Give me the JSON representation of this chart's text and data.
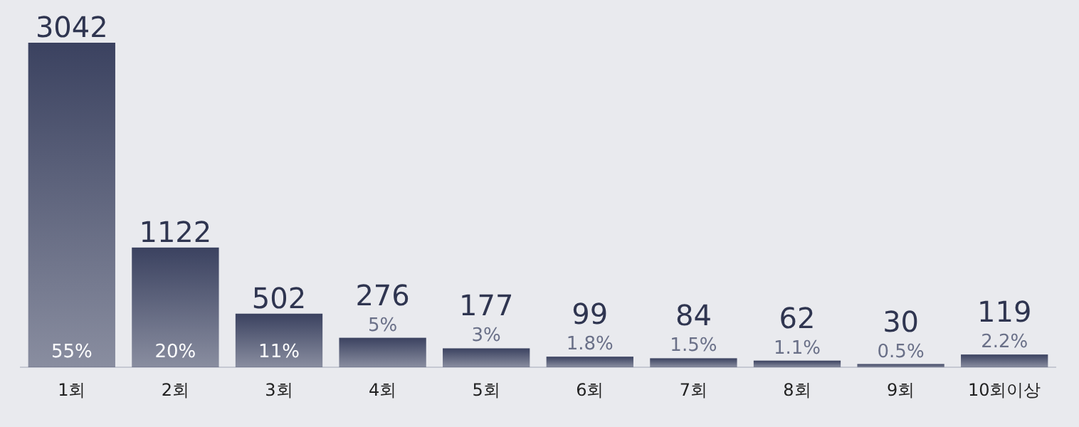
{
  "chart_data": {
    "type": "bar",
    "categories": [
      "1회",
      "2회",
      "3회",
      "4회",
      "5회",
      "6회",
      "7회",
      "8회",
      "9회",
      "10회이상"
    ],
    "values": [
      3042,
      1122,
      502,
      276,
      177,
      99,
      84,
      62,
      30,
      119
    ],
    "color": "#3b4260",
    "data_labels": true,
    "tick_labels": "x",
    "annotations": [
      "55%",
      "20%",
      "11%",
      "5%",
      "3%",
      "1.8%",
      "1.5%",
      "1.1%",
      "0.5%",
      "2.2%"
    ]
  }
}
